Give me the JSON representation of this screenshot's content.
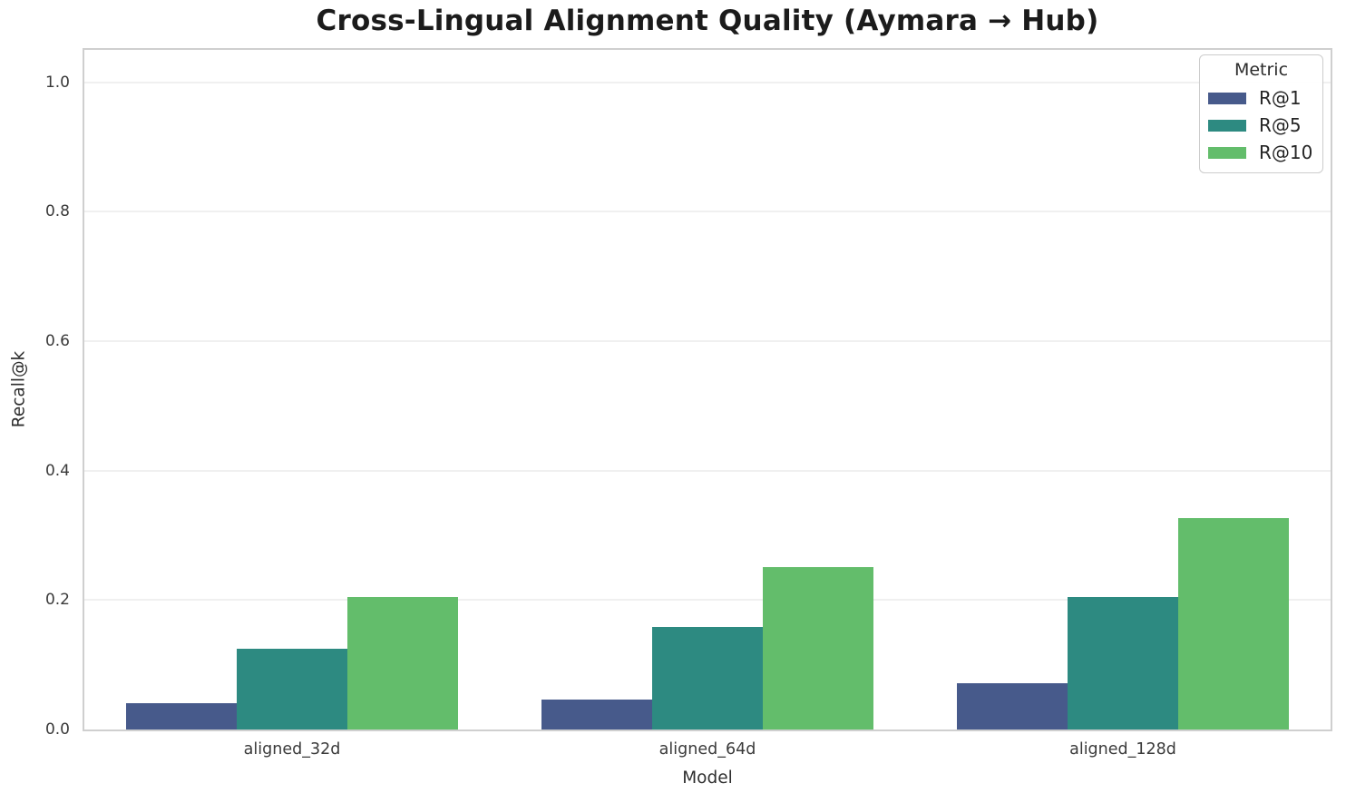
{
  "chart_data": {
    "type": "bar",
    "title": "Cross-Lingual Alignment Quality (Aymara → Hub)",
    "xlabel": "Model",
    "ylabel": "Recall@k",
    "categories": [
      "aligned_32d",
      "aligned_64d",
      "aligned_128d"
    ],
    "series": [
      {
        "name": "R@1",
        "color": "#475a8b",
        "values": [
          0.04,
          0.046,
          0.072
        ]
      },
      {
        "name": "R@5",
        "color": "#2d8a81",
        "values": [
          0.125,
          0.158,
          0.205
        ]
      },
      {
        "name": "R@10",
        "color": "#63bd6b",
        "values": [
          0.205,
          0.251,
          0.326
        ]
      }
    ],
    "ylim": [
      0,
      1.05
    ],
    "yticks": [
      "0.0",
      "0.2",
      "0.4",
      "0.6",
      "0.8",
      "1.0"
    ],
    "grid": "horizontal",
    "legend": {
      "title": "Metric",
      "position": "upper right"
    }
  }
}
